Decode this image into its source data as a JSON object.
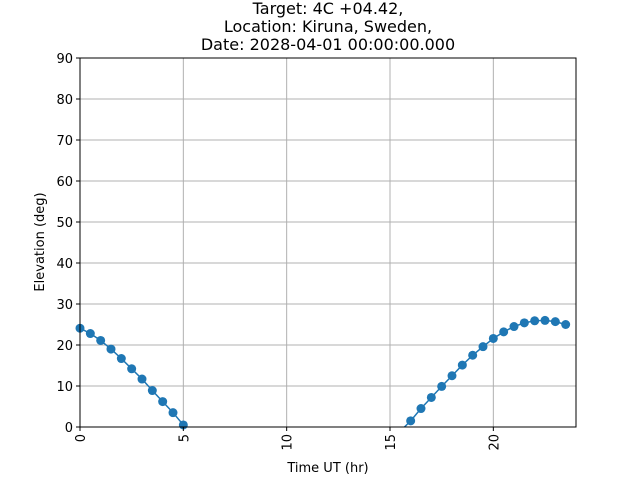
{
  "chart_data": {
    "type": "line",
    "title_lines": [
      "Target: 4C +04.42,",
      "Location: Kiruna, Sweden,",
      "Date: 2028-04-01 00:00:00.000"
    ],
    "xlabel": "Time UT (hr)",
    "ylabel": "Elevation (deg)",
    "xlim": [
      0,
      24
    ],
    "ylim": [
      0,
      90
    ],
    "xticks": [
      0,
      5,
      10,
      15,
      20
    ],
    "yticks": [
      0,
      10,
      20,
      30,
      40,
      50,
      60,
      70,
      80,
      90
    ],
    "grid": true,
    "series": [
      {
        "color": "#1f77b4",
        "marker": "circle",
        "segments": [
          {
            "x": [
              0,
              0.5,
              1,
              1.5,
              2,
              2.5,
              3,
              3.5,
              4,
              4.5,
              5
            ],
            "y": [
              24.1,
              22.8,
              21.1,
              19.0,
              16.7,
              14.2,
              11.7,
              8.9,
              6.2,
              3.5,
              0.5
            ]
          },
          {
            "x": [
              15.7,
              16,
              16.5,
              17,
              17.5,
              18,
              18.5,
              19,
              19.5,
              20,
              20.5,
              21,
              21.5,
              22,
              22.5,
              23,
              23.5
            ],
            "y": [
              0,
              1.5,
              4.5,
              7.2,
              9.9,
              12.5,
              15.1,
              17.5,
              19.6,
              21.6,
              23.2,
              24.5,
              25.4,
              25.9,
              26.0,
              25.7,
              25.0
            ],
            "markers_from": 1
          }
        ]
      }
    ]
  }
}
